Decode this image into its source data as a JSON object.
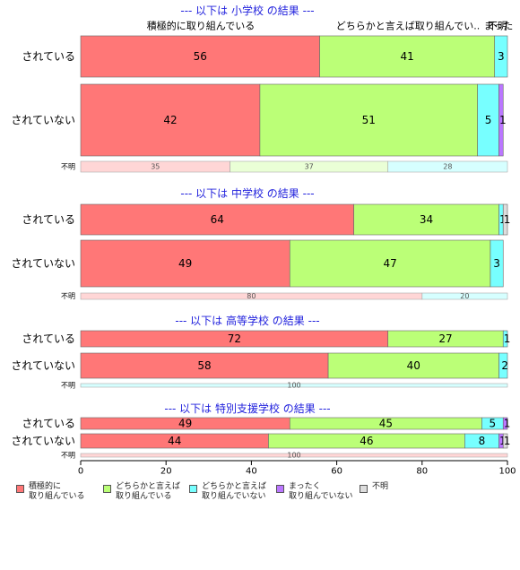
{
  "chart_data": {
    "type": "bar",
    "orientation": "horizontal",
    "stacked": true,
    "xlim": [
      0,
      100
    ],
    "xticks": [
      0,
      20,
      40,
      60,
      80,
      100
    ],
    "categories": [
      "積極的に取り組んでいる",
      "どちらかと言えば取り組んでいる",
      "どちらかと言えば取り組んでいない",
      "まったく取り組んでいない",
      "不明"
    ],
    "colors": [
      "#ff7777",
      "#bbff77",
      "#77ffff",
      "#bb77ff",
      "#dddddd"
    ],
    "legend": [
      {
        "label": "積極的に\n取り組んでいる",
        "color": "#ff7777"
      },
      {
        "label": "どちらかと言えば\n取り組んでいる",
        "color": "#bbff77"
      },
      {
        "label": "どちらかと言えば\n取り組んでいない",
        "color": "#77ffff"
      },
      {
        "label": "まったく\n取り組んでいない",
        "color": "#bb77ff"
      },
      {
        "label": "不明",
        "color": "#dddddd"
      }
    ],
    "top_labels": [
      "積極的に取り組んでいる",
      "どちらかと言えば取り組んでい..",
      "まった",
      "不明"
    ],
    "panels": [
      {
        "title": "--- 以下は 小学校 の結果 ---",
        "rows": [
          {
            "label": "されている",
            "values": [
              56,
              41,
              3,
              0,
              0
            ]
          },
          {
            "label": "されていない",
            "values": [
              42,
              51,
              5,
              1,
              0
            ]
          },
          {
            "label": "不明",
            "values": [
              35,
              37,
              28,
              0,
              0
            ]
          }
        ]
      },
      {
        "title": "--- 以下は 中学校 の結果 ---",
        "rows": [
          {
            "label": "されている",
            "values": [
              64,
              34,
              1,
              0,
              1
            ]
          },
          {
            "label": "されていない",
            "values": [
              49,
              47,
              3,
              0,
              0
            ]
          },
          {
            "label": "不明",
            "values": [
              80,
              0,
              20,
              0,
              0
            ]
          }
        ]
      },
      {
        "title": "--- 以下は 高等学校 の結果 ---",
        "rows": [
          {
            "label": "されている",
            "values": [
              72,
              27,
              1,
              0,
              0
            ]
          },
          {
            "label": "されていない",
            "values": [
              58,
              40,
              2,
              0,
              0
            ]
          },
          {
            "label": "不明",
            "values": [
              0,
              0,
              100,
              0,
              0
            ]
          }
        ]
      },
      {
        "title": "--- 以下は 特別支援学校 の結果 ---",
        "rows": [
          {
            "label": "されている",
            "values": [
              49,
              45,
              5,
              1,
              0
            ]
          },
          {
            "label": "されていない",
            "values": [
              44,
              46,
              8,
              1,
              1
            ]
          },
          {
            "label": "不明",
            "values": [
              100,
              0,
              0,
              0,
              0
            ]
          }
        ]
      }
    ]
  }
}
